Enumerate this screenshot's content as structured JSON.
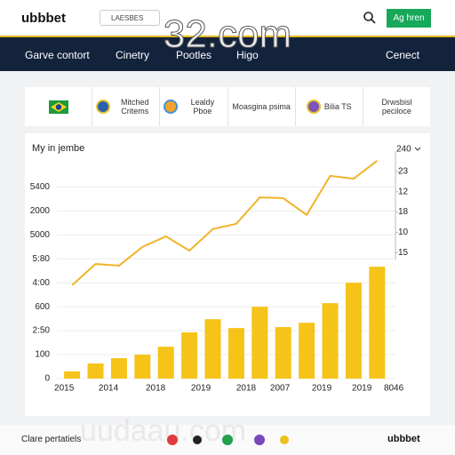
{
  "header": {
    "logo": "ubbbet",
    "search": "LAESBES",
    "button": "Ag hren"
  },
  "watermark": "32.com",
  "nav": [
    "Garve contort",
    "Cinetry",
    "Pootles",
    "Higo",
    "Cenect"
  ],
  "cards": [
    "Mitched Critems",
    "Lealdy Pboe",
    "Moasgina psima",
    "Bilia TS",
    "Drwsbisl peciloce"
  ],
  "chart_data": {
    "type": "bar",
    "title": "My in jembe",
    "dropdown": "240",
    "x": [
      0,
      1,
      2,
      3,
      4,
      5,
      6,
      7,
      8,
      9,
      10,
      11,
      12,
      13
    ],
    "xlim": [
      -0.8,
      14.2
    ],
    "xticks": [
      {
        "value": -0.34,
        "label": "2015"
      },
      {
        "value": 1.55,
        "label": "2014"
      },
      {
        "value": 3.56,
        "label": "2018"
      },
      {
        "value": 5.49,
        "label": "2019"
      },
      {
        "value": 7.42,
        "label": "2018"
      },
      {
        "value": 8.86,
        "label": "2007"
      },
      {
        "value": 10.64,
        "label": "2019"
      },
      {
        "value": 12.35,
        "label": "2019"
      },
      {
        "value": 13.71,
        "label": "8046"
      }
    ],
    "ylim": [
      0,
      950
    ],
    "yticks": [
      0,
      100,
      {
        "value": 200,
        "label": "2:50"
      },
      {
        "value": 300,
        "label": "600"
      },
      {
        "value": 400,
        "label": "4:00"
      },
      {
        "value": 500,
        "label": "5:80"
      },
      {
        "value": 600,
        "label": "5000"
      },
      {
        "value": 700,
        "label": "2000"
      },
      {
        "value": 800,
        "label": "5400"
      }
    ],
    "y2lim": [
      -26,
      30
    ],
    "y2ticks": [
      {
        "value": 5,
        "label": "15"
      },
      10,
      {
        "value": 15,
        "label": "18"
      },
      {
        "value": 20,
        "label": "12"
      },
      {
        "value": 25,
        "label": "23"
      }
    ],
    "grid": true,
    "series": [
      {
        "type": "bar",
        "color": "#f6c318",
        "values": [
          30,
          63,
          85,
          100,
          133,
          193,
          248,
          211,
          300,
          215,
          233,
          315,
          400,
          467
        ]
      },
      {
        "type": "line",
        "axis": "y2",
        "color": "#f0b429",
        "values": [
          -3.0,
          2.2,
          1.8,
          6.4,
          9.0,
          5.5,
          10.8,
          12.1,
          18.6,
          18.4,
          14.3,
          23.9,
          23.2,
          27.6
        ]
      }
    ]
  },
  "footer": {
    "label": "Clare pertatiels",
    "logo": "ubbbet",
    "watermark": "uudaau.com"
  }
}
